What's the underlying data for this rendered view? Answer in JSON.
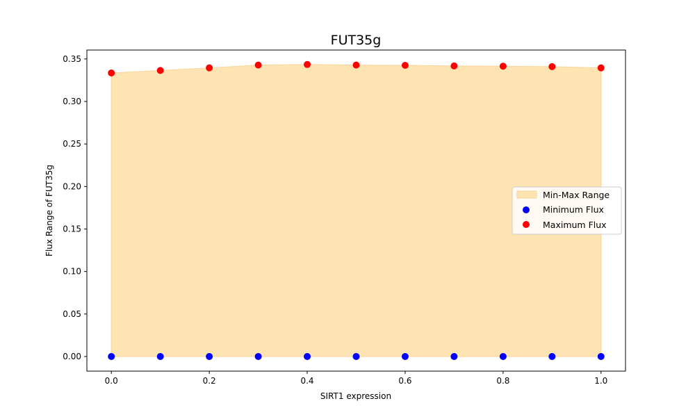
{
  "chart_data": {
    "type": "scatter",
    "title": "FUT35g",
    "xlabel": "SIRT1 expression",
    "ylabel": "Flux Range of FUT35g",
    "xlim": [
      -0.05,
      1.05
    ],
    "ylim": [
      -0.0172,
      0.3605
    ],
    "x_ticks": [
      0.0,
      0.2,
      0.4,
      0.6,
      0.8,
      1.0
    ],
    "x_tick_labels": [
      "0.0",
      "0.2",
      "0.4",
      "0.6",
      "0.8",
      "1.0"
    ],
    "y_ticks": [
      0.0,
      0.05,
      0.1,
      0.15,
      0.2,
      0.25,
      0.3,
      0.35
    ],
    "y_tick_labels": [
      "0.00",
      "0.05",
      "0.10",
      "0.15",
      "0.20",
      "0.25",
      "0.30",
      "0.35"
    ],
    "grid": false,
    "legend_position": "center-right",
    "x": [
      0.0,
      0.1,
      0.2,
      0.3,
      0.4,
      0.5,
      0.6,
      0.7,
      0.8,
      0.9,
      1.0
    ],
    "series": [
      {
        "name": "Min-Max Range",
        "kind": "fill_between",
        "color": "#ffe4b3",
        "edge_color": "#f8d49a"
      },
      {
        "name": "Minimum Flux",
        "kind": "scatter",
        "color": "#0000ff",
        "values": [
          0,
          0,
          0,
          0,
          0,
          0,
          0,
          0,
          0,
          0,
          0
        ]
      },
      {
        "name": "Maximum Flux",
        "kind": "scatter",
        "color": "#ff0000",
        "values": [
          0.3335,
          0.3365,
          0.3395,
          0.3428,
          0.3435,
          0.3428,
          0.3425,
          0.3418,
          0.3415,
          0.341,
          0.3395
        ]
      }
    ]
  }
}
